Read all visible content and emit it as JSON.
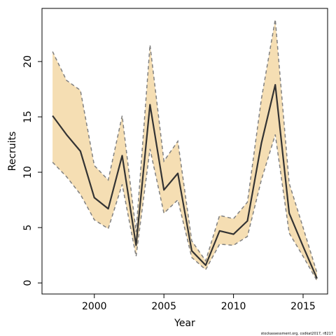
{
  "chart_data": {
    "type": "line",
    "xlabel": "Year",
    "ylabel": "Recruits",
    "footnote": "stockassessment.org, codkat2017, r8217",
    "x": [
      1997,
      1998,
      1999,
      2000,
      2001,
      2002,
      2003,
      2004,
      2005,
      2006,
      2007,
      2008,
      2009,
      2010,
      2011,
      2012,
      2013,
      2014,
      2015,
      2016
    ],
    "values": [
      15.1,
      13.4,
      11.9,
      7.7,
      6.7,
      11.5,
      3.4,
      16.1,
      8.4,
      9.9,
      2.9,
      1.6,
      4.7,
      4.4,
      5.6,
      12.6,
      17.9,
      6.3,
      3.3,
      0.4
    ],
    "lower": [
      10.9,
      9.6,
      8.0,
      5.7,
      4.9,
      8.9,
      2.4,
      12.1,
      6.3,
      7.5,
      2.3,
      1.2,
      3.5,
      3.4,
      4.2,
      9.3,
      13.4,
      4.5,
      2.4,
      0.2
    ],
    "upper": [
      20.9,
      18.3,
      17.4,
      10.6,
      9.3,
      15.1,
      4.6,
      21.5,
      11.0,
      12.8,
      3.8,
      2.0,
      6.1,
      5.8,
      7.3,
      16.6,
      23.8,
      9.0,
      5.0,
      0.9
    ],
    "color": "#333333",
    "band_color": "#f5deb3",
    "band_edge_color": "#808080",
    "xlim": [
      1996.24,
      2016.76
    ],
    "ylim": [
      -1,
      24.8
    ],
    "xticks": [
      2000,
      2005,
      2010,
      2015
    ],
    "yticks": [
      0,
      5,
      10,
      15,
      20
    ]
  }
}
